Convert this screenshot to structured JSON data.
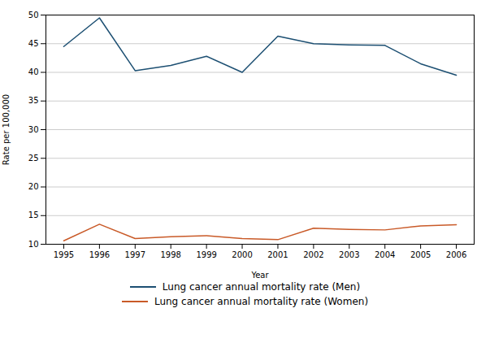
{
  "chart_data": {
    "type": "line",
    "x": [
      1995,
      1996,
      1997,
      1998,
      1999,
      2000,
      2001,
      2002,
      2003,
      2004,
      2005,
      2006
    ],
    "series": [
      {
        "name": "Lung cancer annual mortality rate (Men)",
        "color": "#1c4f72",
        "values": [
          44.5,
          49.5,
          40.3,
          41.2,
          42.8,
          40.0,
          46.3,
          45.0,
          44.8,
          44.7,
          41.5,
          39.5
        ]
      },
      {
        "name": "Lung cancer annual mortality rate (Women)",
        "color": "#c95a28",
        "values": [
          10.6,
          13.5,
          11.0,
          11.3,
          11.5,
          11.0,
          10.8,
          12.8,
          12.6,
          12.5,
          13.2,
          13.4
        ]
      }
    ],
    "xlabel": "Year",
    "ylabel": "Rate per 100,000",
    "xlim": [
      1994.5,
      2006.5
    ],
    "xticks": [
      1995,
      1996,
      1997,
      1998,
      1999,
      2000,
      2001,
      2002,
      2003,
      2004,
      2005,
      2006
    ],
    "ylim": [
      10,
      50
    ],
    "yticks": [
      10,
      15,
      20,
      25,
      30,
      35,
      40,
      45,
      50
    ],
    "grid": true,
    "legend": "bottom"
  }
}
